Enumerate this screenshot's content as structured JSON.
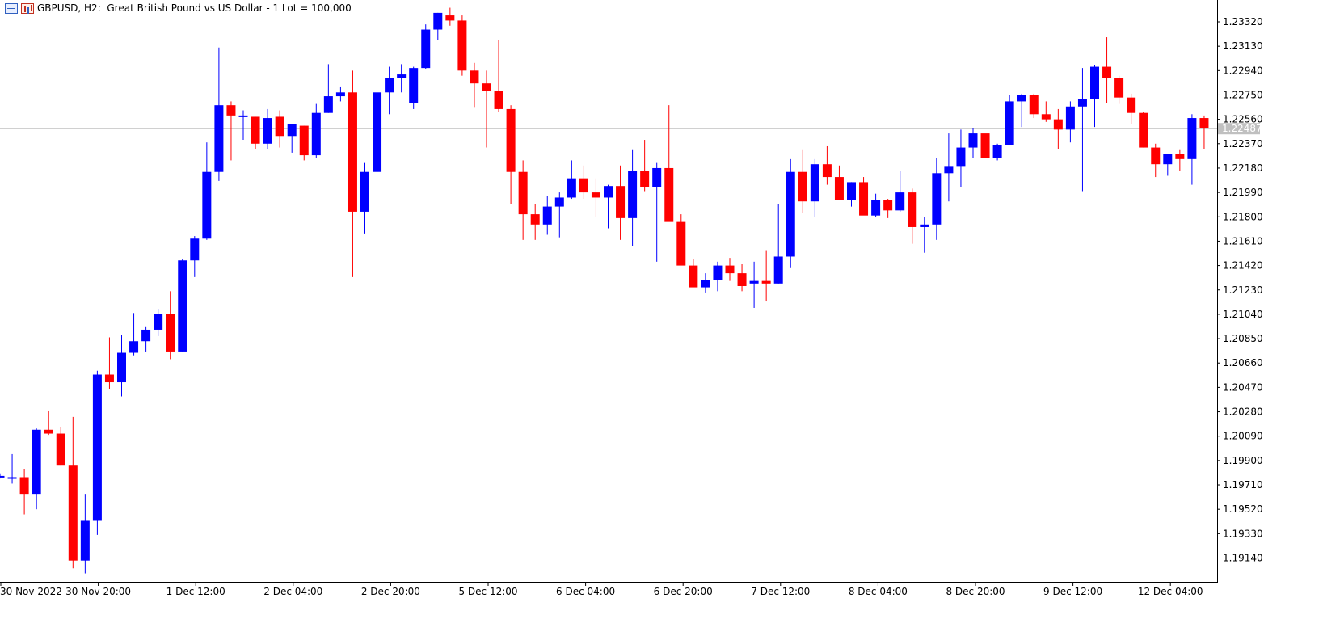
{
  "header": {
    "title": "GBPUSD, H2:  Great British Pound vs US Dollar - 1 Lot = 100,000",
    "icons": [
      "chart-list-icon",
      "bar-chart-icon"
    ]
  },
  "colors": {
    "bull": "#0000ff",
    "bear": "#ff0000",
    "price_line": "#c0c0c0",
    "price_label_bg": "#c0c0c0",
    "price_label_text": "#ffffff",
    "axis": "#000000"
  },
  "chart_data": {
    "type": "candlestick",
    "title": "GBPUSD, H2:  Great British Pound vs US Dollar - 1 Lot = 100,000",
    "symbol": "GBPUSD",
    "timeframe": "H2",
    "ylim": [
      1.1903,
      1.234
    ],
    "current_price": "1.22487",
    "y_ticks": [
      "1.23320",
      "1.23130",
      "1.22940",
      "1.22750",
      "1.22560",
      "1.22370",
      "1.22180",
      "1.21990",
      "1.21800",
      "1.21610",
      "1.21420",
      "1.21230",
      "1.21040",
      "1.20850",
      "1.20660",
      "1.20470",
      "1.20280",
      "1.20090",
      "1.19900",
      "1.19710",
      "1.19520",
      "1.19330",
      "1.19140"
    ],
    "x_ticks": [
      "30 Nov 2022",
      "30 Nov 20:00",
      "1 Dec 12:00",
      "2 Dec 04:00",
      "2 Dec 20:00",
      "5 Dec 12:00",
      "6 Dec 04:00",
      "6 Dec 20:00",
      "7 Dec 12:00",
      "8 Dec 04:00",
      "8 Dec 20:00",
      "9 Dec 12:00",
      "12 Dec 04:00"
    ],
    "ohlc": [
      [
        1.1977,
        1.198,
        1.1976,
        1.1978
      ],
      [
        1.1977,
        1.1995,
        1.1972,
        1.1977
      ],
      [
        1.1977,
        1.1983,
        1.1948,
        1.1964
      ],
      [
        1.1964,
        1.2015,
        1.1952,
        1.2014
      ],
      [
        1.2014,
        1.2029,
        1.201,
        1.2011
      ],
      [
        1.2011,
        1.2016,
        1.1986,
        1.1986
      ],
      [
        1.1986,
        1.2024,
        1.1906,
        1.1912
      ],
      [
        1.1912,
        1.1964,
        1.1902,
        1.1943
      ],
      [
        1.1943,
        1.206,
        1.1932,
        1.2057
      ],
      [
        1.2057,
        1.2086,
        1.2046,
        1.2051
      ],
      [
        1.2051,
        1.2088,
        1.204,
        1.2074
      ],
      [
        1.2074,
        1.2105,
        1.2072,
        1.2083
      ],
      [
        1.2083,
        1.2094,
        1.2075,
        1.2092
      ],
      [
        1.2092,
        1.2108,
        1.2087,
        1.2104
      ],
      [
        1.2104,
        1.2122,
        1.2069,
        1.2075
      ],
      [
        1.2075,
        1.2147,
        1.2075,
        1.2146
      ],
      [
        1.2146,
        1.2165,
        1.2133,
        1.2163
      ],
      [
        1.2163,
        1.2238,
        1.2162,
        1.2215
      ],
      [
        1.2215,
        1.2312,
        1.2208,
        1.2267
      ],
      [
        1.2267,
        1.227,
        1.2224,
        1.2259
      ],
      [
        1.2259,
        1.2263,
        1.224,
        1.2259
      ],
      [
        1.2258,
        1.2258,
        1.2233,
        1.2237
      ],
      [
        1.2237,
        1.2264,
        1.2233,
        1.2257
      ],
      [
        1.2258,
        1.2263,
        1.2234,
        1.2243
      ],
      [
        1.2243,
        1.2252,
        1.223,
        1.2252
      ],
      [
        1.2251,
        1.2251,
        1.2224,
        1.2228
      ],
      [
        1.2228,
        1.2268,
        1.2226,
        1.2261
      ],
      [
        1.2261,
        1.2299,
        1.2261,
        1.2274
      ],
      [
        1.2274,
        1.2281,
        1.227,
        1.2277
      ],
      [
        1.2277,
        1.2294,
        1.2133,
        1.2184
      ],
      [
        1.2184,
        1.2222,
        1.2167,
        1.2215
      ],
      [
        1.2215,
        1.2277,
        1.2215,
        1.2277
      ],
      [
        1.2277,
        1.2297,
        1.226,
        1.2288
      ],
      [
        1.2288,
        1.2299,
        1.2277,
        1.2291
      ],
      [
        1.2269,
        1.2297,
        1.2264,
        1.2296
      ],
      [
        1.2296,
        1.233,
        1.2295,
        1.2326
      ],
      [
        1.2326,
        1.2339,
        1.2318,
        1.2339
      ],
      [
        1.2337,
        1.2343,
        1.2329,
        1.2333
      ],
      [
        1.2333,
        1.2337,
        1.229,
        1.2294
      ],
      [
        1.2294,
        1.23,
        1.2265,
        1.2284
      ],
      [
        1.2284,
        1.2294,
        1.2234,
        1.2278
      ],
      [
        1.2278,
        1.2318,
        1.2262,
        1.2264
      ],
      [
        1.2264,
        1.2267,
        1.219,
        1.2215
      ],
      [
        1.2215,
        1.2224,
        1.2162,
        1.2182
      ],
      [
        1.2182,
        1.219,
        1.2162,
        1.2174
      ],
      [
        1.2174,
        1.2196,
        1.2166,
        1.2188
      ],
      [
        1.2188,
        1.2199,
        1.2164,
        1.2195
      ],
      [
        1.2195,
        1.2224,
        1.2194,
        1.221
      ],
      [
        1.221,
        1.222,
        1.2194,
        1.2199
      ],
      [
        1.2199,
        1.221,
        1.218,
        1.2195
      ],
      [
        1.2195,
        1.2205,
        1.2171,
        1.2204
      ],
      [
        1.2204,
        1.222,
        1.2162,
        1.2179
      ],
      [
        1.2179,
        1.2232,
        1.2157,
        1.2216
      ],
      [
        1.2216,
        1.224,
        1.22,
        1.2203
      ],
      [
        1.2203,
        1.2222,
        1.2145,
        1.2218
      ],
      [
        1.2218,
        1.2267,
        1.2179,
        1.2176
      ],
      [
        1.2176,
        1.2182,
        1.2146,
        1.2142
      ],
      [
        1.2142,
        1.2147,
        1.2126,
        1.2125
      ],
      [
        1.2125,
        1.2136,
        1.2121,
        1.2131
      ],
      [
        1.2131,
        1.2145,
        1.2122,
        1.2142
      ],
      [
        1.2142,
        1.2148,
        1.213,
        1.2136
      ],
      [
        1.2136,
        1.2143,
        1.2122,
        1.2126
      ],
      [
        1.2128,
        1.2145,
        1.2109,
        1.213
      ],
      [
        1.213,
        1.2154,
        1.2114,
        1.2128
      ],
      [
        1.2128,
        1.219,
        1.2128,
        1.2149
      ],
      [
        1.2149,
        1.2225,
        1.214,
        1.2215
      ],
      [
        1.2215,
        1.2232,
        1.2183,
        1.2192
      ],
      [
        1.2192,
        1.2225,
        1.218,
        1.2221
      ],
      [
        1.2221,
        1.2235,
        1.2205,
        1.2211
      ],
      [
        1.2211,
        1.222,
        1.2193,
        1.2193
      ],
      [
        1.2193,
        1.2207,
        1.2188,
        1.2207
      ],
      [
        1.2207,
        1.2211,
        1.2182,
        1.2181
      ],
      [
        1.2181,
        1.2198,
        1.218,
        1.2193
      ],
      [
        1.2193,
        1.2194,
        1.2179,
        1.2185
      ],
      [
        1.2185,
        1.2216,
        1.2184,
        1.2199
      ],
      [
        1.2199,
        1.2202,
        1.2159,
        1.2172
      ],
      [
        1.2172,
        1.218,
        1.2152,
        1.2174
      ],
      [
        1.2174,
        1.2226,
        1.2162,
        1.2214
      ],
      [
        1.2214,
        1.2245,
        1.2192,
        1.2219
      ],
      [
        1.2219,
        1.2248,
        1.2203,
        1.2234
      ],
      [
        1.2234,
        1.2249,
        1.2226,
        1.2245
      ],
      [
        1.2245,
        1.2244,
        1.2226,
        1.2226
      ],
      [
        1.2226,
        1.2237,
        1.2224,
        1.2236
      ],
      [
        1.2236,
        1.2275,
        1.2236,
        1.227
      ],
      [
        1.227,
        1.2276,
        1.225,
        1.2275
      ],
      [
        1.2275,
        1.2276,
        1.2257,
        1.226
      ],
      [
        1.226,
        1.227,
        1.2254,
        1.2256
      ],
      [
        1.2256,
        1.2264,
        1.2233,
        1.2248
      ],
      [
        1.2248,
        1.227,
        1.2238,
        1.2266
      ],
      [
        1.2266,
        1.2296,
        1.22,
        1.2272
      ],
      [
        1.2272,
        1.2298,
        1.225,
        1.2297
      ],
      [
        1.2297,
        1.232,
        1.2269,
        1.2288
      ],
      [
        1.2288,
        1.229,
        1.2268,
        1.2273
      ],
      [
        1.2273,
        1.2276,
        1.2252,
        1.2261
      ],
      [
        1.2261,
        1.2262,
        1.2234,
        1.2234
      ],
      [
        1.2234,
        1.2237,
        1.2211,
        1.2221
      ],
      [
        1.2221,
        1.2229,
        1.2212,
        1.2229
      ],
      [
        1.2229,
        1.2232,
        1.2216,
        1.2225
      ],
      [
        1.2225,
        1.226,
        1.2205,
        1.2257
      ],
      [
        1.2257,
        1.2259,
        1.2233,
        1.2249
      ]
    ]
  }
}
